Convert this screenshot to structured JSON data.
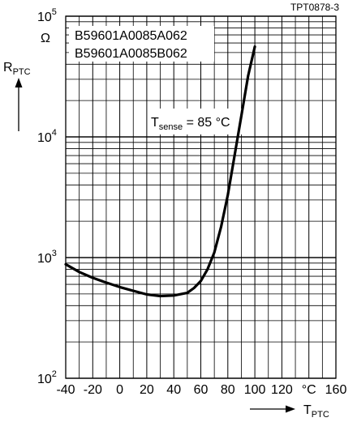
{
  "chart_data": {
    "type": "line",
    "figure_id": "TPT0878-3",
    "y_axis": {
      "symbol": "R",
      "subscript": "PTC",
      "unit": "Ω",
      "scale": "log",
      "ylim": [
        100,
        100000
      ],
      "ticks": [
        {
          "value": 100,
          "base": "10",
          "exp": "2"
        },
        {
          "value": 1000,
          "base": "10",
          "exp": "3"
        },
        {
          "value": 10000,
          "base": "10",
          "exp": "4"
        },
        {
          "value": 100000,
          "base": "10",
          "exp": "5"
        }
      ]
    },
    "x_axis": {
      "symbol": "T",
      "subscript": "PTC",
      "unit": "°C",
      "xlim": [
        -40,
        160
      ],
      "ticks": [
        -40,
        -20,
        0,
        20,
        40,
        60,
        80,
        100,
        120,
        140,
        160
      ],
      "tick_labels": [
        "-40",
        "-20",
        "0",
        "20",
        "40",
        "60",
        "80",
        "100",
        "120",
        "",
        "160"
      ]
    },
    "legend": {
      "placement": "top-left",
      "entries": [
        "B59601A0085A062",
        "B59601A0085B062"
      ]
    },
    "annotation": {
      "base": "T",
      "subscript": "sense",
      "text": "= 85 °C"
    },
    "grid": true,
    "series": [
      {
        "x": [
          -40,
          -30,
          -20,
          -10,
          0,
          10,
          20,
          30,
          40,
          50,
          55,
          60,
          65,
          70,
          75,
          80,
          85,
          90,
          95,
          100
        ],
        "y": [
          880,
          760,
          680,
          620,
          570,
          530,
          495,
          480,
          485,
          510,
          560,
          640,
          800,
          1100,
          1800,
          3300,
          7000,
          15000,
          32000,
          56000
        ]
      }
    ]
  }
}
